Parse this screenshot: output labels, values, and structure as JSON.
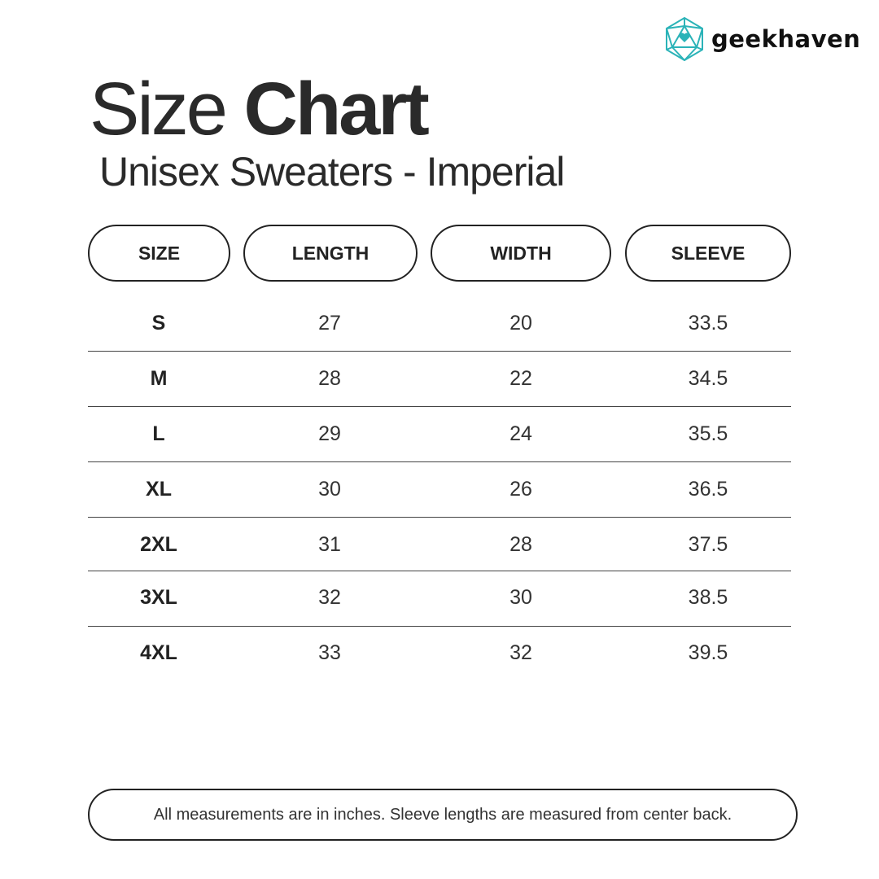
{
  "brand": {
    "name": "geekhaven",
    "logo_icon": "d20-heart-icon",
    "accent": "#2bb3b8"
  },
  "title": {
    "light": "Size",
    "bold": "Chart"
  },
  "subtitle": "Unisex Sweaters - Imperial",
  "table": {
    "headers": [
      "SIZE",
      "LENGTH",
      "WIDTH",
      "SLEEVE"
    ],
    "rows": [
      [
        "S",
        "27",
        "20",
        "33.5"
      ],
      [
        "M",
        "28",
        "22",
        "34.5"
      ],
      [
        "L",
        "29",
        "24",
        "35.5"
      ],
      [
        "XL",
        "30",
        "26",
        "36.5"
      ],
      [
        "2XL",
        "31",
        "28",
        "37.5"
      ],
      [
        "3XL",
        "32",
        "30",
        "38.5"
      ],
      [
        "4XL",
        "33",
        "32",
        "39.5"
      ]
    ]
  },
  "footer": "All measurements are in inches. Sleeve lengths are measured from center back."
}
